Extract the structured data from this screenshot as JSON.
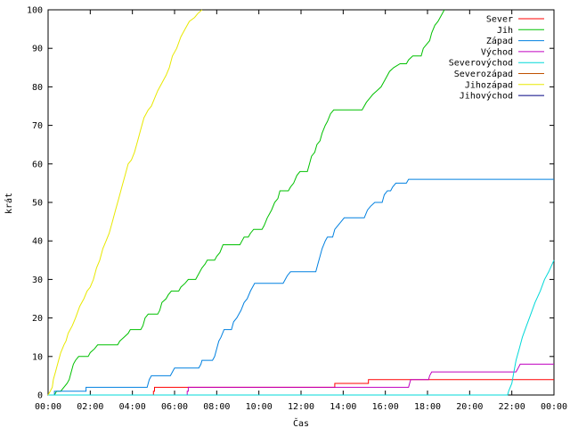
{
  "chart_data": {
    "type": "line",
    "title": "",
    "xlabel": "Čas",
    "ylabel": "krát",
    "xlim": [
      0,
      24
    ],
    "ylim": [
      0,
      100
    ],
    "grid": false,
    "legend_position": "top-right",
    "x_ticks": [
      {
        "v": 0,
        "label": "00:00"
      },
      {
        "v": 2,
        "label": "02:00"
      },
      {
        "v": 4,
        "label": "04:00"
      },
      {
        "v": 6,
        "label": "06:00"
      },
      {
        "v": 8,
        "label": "08:00"
      },
      {
        "v": 10,
        "label": "10:00"
      },
      {
        "v": 12,
        "label": "12:00"
      },
      {
        "v": 14,
        "label": "14:00"
      },
      {
        "v": 16,
        "label": "16:00"
      },
      {
        "v": 18,
        "label": "18:00"
      },
      {
        "v": 20,
        "label": "20:00"
      },
      {
        "v": 22,
        "label": "22:00"
      },
      {
        "v": 24,
        "label": "00:00"
      }
    ],
    "y_ticks": [
      {
        "v": 0,
        "label": "0"
      },
      {
        "v": 10,
        "label": "10"
      },
      {
        "v": 20,
        "label": "20"
      },
      {
        "v": 30,
        "label": "30"
      },
      {
        "v": 40,
        "label": "40"
      },
      {
        "v": 50,
        "label": "50"
      },
      {
        "v": 60,
        "label": "60"
      },
      {
        "v": 70,
        "label": "70"
      },
      {
        "v": 80,
        "label": "80"
      },
      {
        "v": 90,
        "label": "90"
      },
      {
        "v": 100,
        "label": "100"
      }
    ],
    "series": [
      {
        "name": "Sever",
        "color": "#ff0000",
        "x_unit": "hours",
        "points": [
          [
            0,
            0
          ],
          [
            5.0,
            0
          ],
          [
            5.0,
            1
          ],
          [
            5.05,
            1
          ],
          [
            5.05,
            2
          ],
          [
            13.6,
            2
          ],
          [
            13.6,
            3
          ],
          [
            15.2,
            3
          ],
          [
            15.2,
            4
          ],
          [
            24,
            4
          ]
        ]
      },
      {
        "name": "Jih",
        "color": "#00c000",
        "x_unit": "hours",
        "points": [
          [
            0.3,
            0
          ],
          [
            0.4,
            1
          ],
          [
            0.6,
            1
          ],
          [
            0.9,
            3
          ],
          [
            1.0,
            4
          ],
          [
            1.1,
            6
          ],
          [
            1.2,
            8
          ],
          [
            1.3,
            9
          ],
          [
            1.45,
            10
          ],
          [
            1.9,
            10
          ],
          [
            2.0,
            11
          ],
          [
            2.2,
            12
          ],
          [
            2.35,
            13
          ],
          [
            3.3,
            13
          ],
          [
            3.4,
            14
          ],
          [
            3.6,
            15
          ],
          [
            3.8,
            16
          ],
          [
            3.9,
            17
          ],
          [
            4.4,
            17
          ],
          [
            4.5,
            18
          ],
          [
            4.6,
            20
          ],
          [
            4.75,
            21
          ],
          [
            5.2,
            21
          ],
          [
            5.3,
            22
          ],
          [
            5.4,
            24
          ],
          [
            5.6,
            25
          ],
          [
            5.7,
            26
          ],
          [
            5.85,
            27
          ],
          [
            6.2,
            27
          ],
          [
            6.3,
            28
          ],
          [
            6.5,
            29
          ],
          [
            6.65,
            30
          ],
          [
            7.0,
            30
          ],
          [
            7.1,
            31
          ],
          [
            7.3,
            33
          ],
          [
            7.45,
            34
          ],
          [
            7.55,
            35
          ],
          [
            7.9,
            35
          ],
          [
            8.0,
            36
          ],
          [
            8.15,
            37
          ],
          [
            8.3,
            39
          ],
          [
            9.1,
            39
          ],
          [
            9.2,
            40
          ],
          [
            9.3,
            41
          ],
          [
            9.5,
            41
          ],
          [
            9.6,
            42
          ],
          [
            9.75,
            43
          ],
          [
            10.15,
            43
          ],
          [
            10.25,
            44
          ],
          [
            10.4,
            46
          ],
          [
            10.5,
            47
          ],
          [
            10.6,
            48
          ],
          [
            10.75,
            50
          ],
          [
            10.9,
            51
          ],
          [
            11.0,
            53
          ],
          [
            11.4,
            53
          ],
          [
            11.5,
            54
          ],
          [
            11.65,
            55
          ],
          [
            11.8,
            57
          ],
          [
            11.95,
            58
          ],
          [
            12.3,
            58
          ],
          [
            12.4,
            60
          ],
          [
            12.5,
            62
          ],
          [
            12.65,
            63
          ],
          [
            12.75,
            65
          ],
          [
            12.9,
            66
          ],
          [
            13.0,
            68
          ],
          [
            13.15,
            70
          ],
          [
            13.25,
            71
          ],
          [
            13.4,
            73
          ],
          [
            13.55,
            74
          ],
          [
            14.9,
            74
          ],
          [
            15.1,
            76
          ],
          [
            15.25,
            77
          ],
          [
            15.4,
            78
          ],
          [
            15.6,
            79
          ],
          [
            15.8,
            80
          ],
          [
            16.0,
            82
          ],
          [
            16.2,
            84
          ],
          [
            16.4,
            85
          ],
          [
            16.7,
            86
          ],
          [
            17.0,
            86
          ],
          [
            17.1,
            87
          ],
          [
            17.3,
            88
          ],
          [
            17.7,
            88
          ],
          [
            17.8,
            90
          ],
          [
            17.95,
            91
          ],
          [
            18.1,
            92
          ],
          [
            18.2,
            94
          ],
          [
            18.35,
            96
          ],
          [
            18.5,
            97
          ],
          [
            18.6,
            98
          ],
          [
            18.7,
            99
          ],
          [
            18.8,
            100
          ]
        ]
      },
      {
        "name": "Západ",
        "color": "#0080e0",
        "x_unit": "hours",
        "points": [
          [
            0.3,
            0
          ],
          [
            0.3,
            1
          ],
          [
            1.8,
            1
          ],
          [
            1.8,
            2
          ],
          [
            4.7,
            2
          ],
          [
            4.8,
            4
          ],
          [
            4.9,
            5
          ],
          [
            5.8,
            5
          ],
          [
            5.9,
            6
          ],
          [
            6.0,
            7
          ],
          [
            7.15,
            7
          ],
          [
            7.25,
            8
          ],
          [
            7.3,
            9
          ],
          [
            7.8,
            9
          ],
          [
            7.9,
            10
          ],
          [
            8.0,
            12
          ],
          [
            8.1,
            14
          ],
          [
            8.2,
            15
          ],
          [
            8.35,
            17
          ],
          [
            8.7,
            17
          ],
          [
            8.8,
            19
          ],
          [
            8.95,
            20
          ],
          [
            9.15,
            22
          ],
          [
            9.3,
            24
          ],
          [
            9.45,
            25
          ],
          [
            9.6,
            27
          ],
          [
            9.8,
            29
          ],
          [
            11.15,
            29
          ],
          [
            11.25,
            30
          ],
          [
            11.35,
            31
          ],
          [
            11.5,
            32
          ],
          [
            12.7,
            32
          ],
          [
            12.8,
            34
          ],
          [
            12.9,
            36
          ],
          [
            13.0,
            38
          ],
          [
            13.15,
            40
          ],
          [
            13.25,
            41
          ],
          [
            13.5,
            41
          ],
          [
            13.6,
            43
          ],
          [
            13.75,
            44
          ],
          [
            13.9,
            45
          ],
          [
            14.05,
            46
          ],
          [
            15.0,
            46
          ],
          [
            15.15,
            48
          ],
          [
            15.3,
            49
          ],
          [
            15.5,
            50
          ],
          [
            15.85,
            50
          ],
          [
            15.95,
            52
          ],
          [
            16.1,
            53
          ],
          [
            16.25,
            53
          ],
          [
            16.35,
            54
          ],
          [
            16.5,
            55
          ],
          [
            17.0,
            55
          ],
          [
            17.1,
            56
          ],
          [
            24,
            56
          ]
        ]
      },
      {
        "name": "Východ",
        "color": "#c000c0",
        "x_unit": "hours",
        "points": [
          [
            0,
            0
          ],
          [
            6.6,
            0
          ],
          [
            6.6,
            1
          ],
          [
            6.65,
            1
          ],
          [
            6.65,
            2
          ],
          [
            17.1,
            2
          ],
          [
            17.2,
            4
          ],
          [
            18.05,
            4
          ],
          [
            18.1,
            5
          ],
          [
            18.2,
            6
          ],
          [
            22.2,
            6
          ],
          [
            22.3,
            7
          ],
          [
            22.4,
            8
          ],
          [
            24,
            8
          ]
        ]
      },
      {
        "name": "Severovýchod",
        "color": "#00d8d8",
        "x_unit": "hours",
        "points": [
          [
            0,
            0
          ],
          [
            21.8,
            0
          ],
          [
            21.85,
            1
          ],
          [
            22.0,
            3
          ],
          [
            22.1,
            6
          ],
          [
            22.2,
            9
          ],
          [
            22.35,
            12
          ],
          [
            22.5,
            15
          ],
          [
            22.7,
            18
          ],
          [
            22.9,
            21
          ],
          [
            23.1,
            24
          ],
          [
            23.35,
            27
          ],
          [
            23.55,
            30
          ],
          [
            23.75,
            32
          ],
          [
            24.0,
            35
          ]
        ]
      },
      {
        "name": "Severozápad",
        "color": "#c05000",
        "x_unit": "hours",
        "points": []
      },
      {
        "name": "Jihozápad",
        "color": "#e8e800",
        "x_unit": "hours",
        "points": [
          [
            0,
            0
          ],
          [
            0.1,
            1
          ],
          [
            0.2,
            2
          ],
          [
            0.25,
            4
          ],
          [
            0.35,
            6
          ],
          [
            0.5,
            9
          ],
          [
            0.6,
            11
          ],
          [
            0.75,
            13
          ],
          [
            0.85,
            14
          ],
          [
            0.95,
            16
          ],
          [
            1.05,
            17
          ],
          [
            1.15,
            18
          ],
          [
            1.3,
            20
          ],
          [
            1.5,
            23
          ],
          [
            1.7,
            25
          ],
          [
            1.85,
            27
          ],
          [
            2.0,
            28
          ],
          [
            2.15,
            30
          ],
          [
            2.3,
            33
          ],
          [
            2.45,
            35
          ],
          [
            2.6,
            38
          ],
          [
            2.75,
            40
          ],
          [
            2.9,
            42
          ],
          [
            3.05,
            45
          ],
          [
            3.2,
            48
          ],
          [
            3.35,
            51
          ],
          [
            3.5,
            54
          ],
          [
            3.65,
            57
          ],
          [
            3.8,
            60
          ],
          [
            3.95,
            61
          ],
          [
            4.1,
            63
          ],
          [
            4.25,
            66
          ],
          [
            4.4,
            69
          ],
          [
            4.55,
            72
          ],
          [
            4.75,
            74
          ],
          [
            4.9,
            75
          ],
          [
            5.05,
            77
          ],
          [
            5.2,
            79
          ],
          [
            5.4,
            81
          ],
          [
            5.6,
            83
          ],
          [
            5.75,
            85
          ],
          [
            5.9,
            88
          ],
          [
            6.1,
            90
          ],
          [
            6.3,
            93
          ],
          [
            6.5,
            95
          ],
          [
            6.7,
            97
          ],
          [
            6.95,
            98
          ],
          [
            7.1,
            99
          ],
          [
            7.3,
            100
          ]
        ]
      },
      {
        "name": "Jihovýchod",
        "color": "#000080",
        "x_unit": "hours",
        "points": []
      }
    ]
  }
}
